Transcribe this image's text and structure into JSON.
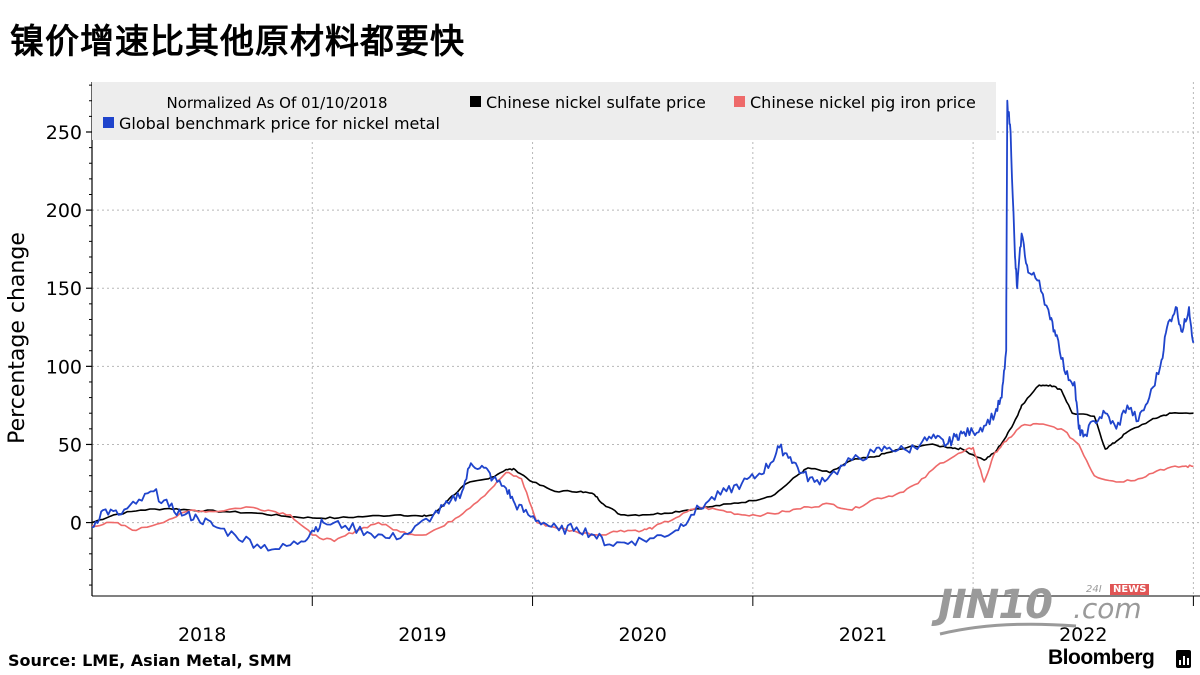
{
  "title": "镍价增速比其他原材料都要快",
  "source": "Source: LME, Asian Metal, SMM",
  "brand": "Bloomberg",
  "watermark": {
    "main": "JIN10",
    "suffix": ".com",
    "tag_num": "24I",
    "tag_news": "NEWS"
  },
  "chart_data": {
    "type": "line",
    "legend_header": "Normalized As Of 01/10/2018",
    "ylabel": "Percentage change",
    "xlabel": "",
    "ylim": [
      -47,
      282
    ],
    "xlim": [
      2017.5,
      2022.53
    ],
    "yticks": [
      0,
      50,
      100,
      150,
      200,
      250
    ],
    "xticks": [
      {
        "label": "2018",
        "pos": 2018.0
      },
      {
        "label": "2019",
        "pos": 2019.0
      },
      {
        "label": "2020",
        "pos": 2020.0
      },
      {
        "label": "2021",
        "pos": 2021.0
      },
      {
        "label": "2022",
        "pos": 2022.0
      }
    ],
    "year_boundaries": [
      2018.5,
      2019.5,
      2020.5,
      2021.5,
      2022.5
    ],
    "grid": true,
    "legend_position": "top-left",
    "series": [
      {
        "name": "Chinese nickel sulfate price",
        "color": "#000000",
        "x": [
          2017.5,
          2017.6,
          2017.72,
          2017.85,
          2017.95,
          2018.1,
          2018.25,
          2018.38,
          2018.5,
          2018.62,
          2018.75,
          2018.9,
          2019.0,
          2019.05,
          2019.12,
          2019.2,
          2019.3,
          2019.38,
          2019.42,
          2019.5,
          2019.6,
          2019.72,
          2019.78,
          2019.82,
          2019.9,
          2020.0,
          2020.1,
          2020.2,
          2020.3,
          2020.4,
          2020.5,
          2020.6,
          2020.7,
          2020.75,
          2020.85,
          2020.95,
          2021.05,
          2021.12,
          2021.2,
          2021.3,
          2021.4,
          2021.45,
          2021.55,
          2021.6,
          2021.65,
          2021.7,
          2021.72,
          2021.8,
          2021.85,
          2021.9,
          2021.95,
          2022.05,
          2022.1,
          2022.15,
          2022.2,
          2022.3,
          2022.35,
          2022.4,
          2022.5
        ],
        "y": [
          0,
          5,
          8,
          9,
          8,
          7,
          6,
          4,
          3,
          3,
          4,
          5,
          4,
          5,
          15,
          25,
          28,
          34,
          34,
          26,
          20,
          20,
          18,
          12,
          5,
          5,
          6,
          8,
          10,
          12,
          14,
          18,
          30,
          35,
          32,
          40,
          42,
          45,
          48,
          50,
          48,
          47,
          40,
          45,
          55,
          68,
          75,
          88,
          88,
          85,
          70,
          68,
          47,
          52,
          58,
          65,
          68,
          70,
          70
        ]
      },
      {
        "name": "Chinese nickel pig iron price",
        "color": "#ee6a6a",
        "x": [
          2017.5,
          2017.6,
          2017.7,
          2017.85,
          2017.95,
          2018.05,
          2018.2,
          2018.3,
          2018.4,
          2018.5,
          2018.6,
          2018.7,
          2018.8,
          2018.9,
          2019.0,
          2019.1,
          2019.2,
          2019.3,
          2019.38,
          2019.45,
          2019.52,
          2019.6,
          2019.7,
          2019.8,
          2019.9,
          2020.0,
          2020.05,
          2020.15,
          2020.25,
          2020.35,
          2020.45,
          2020.55,
          2020.65,
          2020.75,
          2020.85,
          2020.95,
          2021.05,
          2021.15,
          2021.25,
          2021.35,
          2021.45,
          2021.5,
          2021.55,
          2021.6,
          2021.65,
          2021.72,
          2021.8,
          2021.9,
          2021.98,
          2022.05,
          2022.15,
          2022.25,
          2022.35,
          2022.45,
          2022.5
        ],
        "y": [
          -2,
          0,
          -5,
          2,
          8,
          7,
          10,
          8,
          5,
          -8,
          -12,
          -5,
          0,
          -6,
          -8,
          -2,
          8,
          20,
          32,
          28,
          0,
          -3,
          -6,
          -8,
          -5,
          -5,
          -3,
          3,
          10,
          8,
          5,
          5,
          7,
          10,
          12,
          8,
          15,
          18,
          25,
          38,
          45,
          48,
          26,
          45,
          52,
          62,
          63,
          60,
          50,
          30,
          26,
          28,
          34,
          36,
          36
        ]
      },
      {
        "name": "Global benchmark price for nickel metal",
        "color": "#1f44cc",
        "x": [
          2017.5,
          2017.55,
          2017.62,
          2017.7,
          2017.78,
          2017.85,
          2017.92,
          2017.98,
          2018.05,
          2018.15,
          2018.25,
          2018.35,
          2018.45,
          2018.5,
          2018.55,
          2018.65,
          2018.75,
          2018.85,
          2018.95,
          2019.05,
          2019.12,
          2019.18,
          2019.22,
          2019.28,
          2019.32,
          2019.38,
          2019.42,
          2019.48,
          2019.55,
          2019.62,
          2019.7,
          2019.78,
          2019.85,
          2019.95,
          2020.05,
          2020.15,
          2020.22,
          2020.3,
          2020.38,
          2020.45,
          2020.52,
          2020.58,
          2020.62,
          2020.67,
          2020.72,
          2020.78,
          2020.85,
          2020.95,
          2021.05,
          2021.12,
          2021.2,
          2021.27,
          2021.33,
          2021.38,
          2021.42,
          2021.45,
          2021.5,
          2021.55,
          2021.6,
          2021.63,
          2021.65,
          2021.655,
          2021.67,
          2021.69,
          2021.7,
          2021.72,
          2021.75,
          2021.8,
          2021.85,
          2021.88,
          2021.92,
          2021.96,
          2021.98,
          2022.0,
          2022.05,
          2022.1,
          2022.15,
          2022.2,
          2022.25,
          2022.3,
          2022.35,
          2022.38,
          2022.42,
          2022.45,
          2022.48,
          2022.5
        ],
        "y": [
          -3,
          8,
          5,
          12,
          20,
          10,
          5,
          3,
          -2,
          -8,
          -14,
          -17,
          -12,
          -5,
          0,
          -2,
          -6,
          -10,
          -6,
          5,
          12,
          20,
          38,
          35,
          28,
          22,
          12,
          5,
          0,
          -5,
          -3,
          -8,
          -14,
          -12,
          -10,
          -5,
          5,
          14,
          20,
          25,
          30,
          38,
          48,
          42,
          32,
          26,
          30,
          40,
          45,
          48,
          46,
          52,
          54,
          50,
          55,
          57,
          58,
          62,
          70,
          80,
          110,
          270,
          250,
          170,
          150,
          185,
          160,
          155,
          130,
          120,
          95,
          90,
          60,
          55,
          65,
          70,
          60,
          75,
          65,
          80,
          100,
          125,
          138,
          122,
          138,
          115
        ]
      }
    ]
  }
}
